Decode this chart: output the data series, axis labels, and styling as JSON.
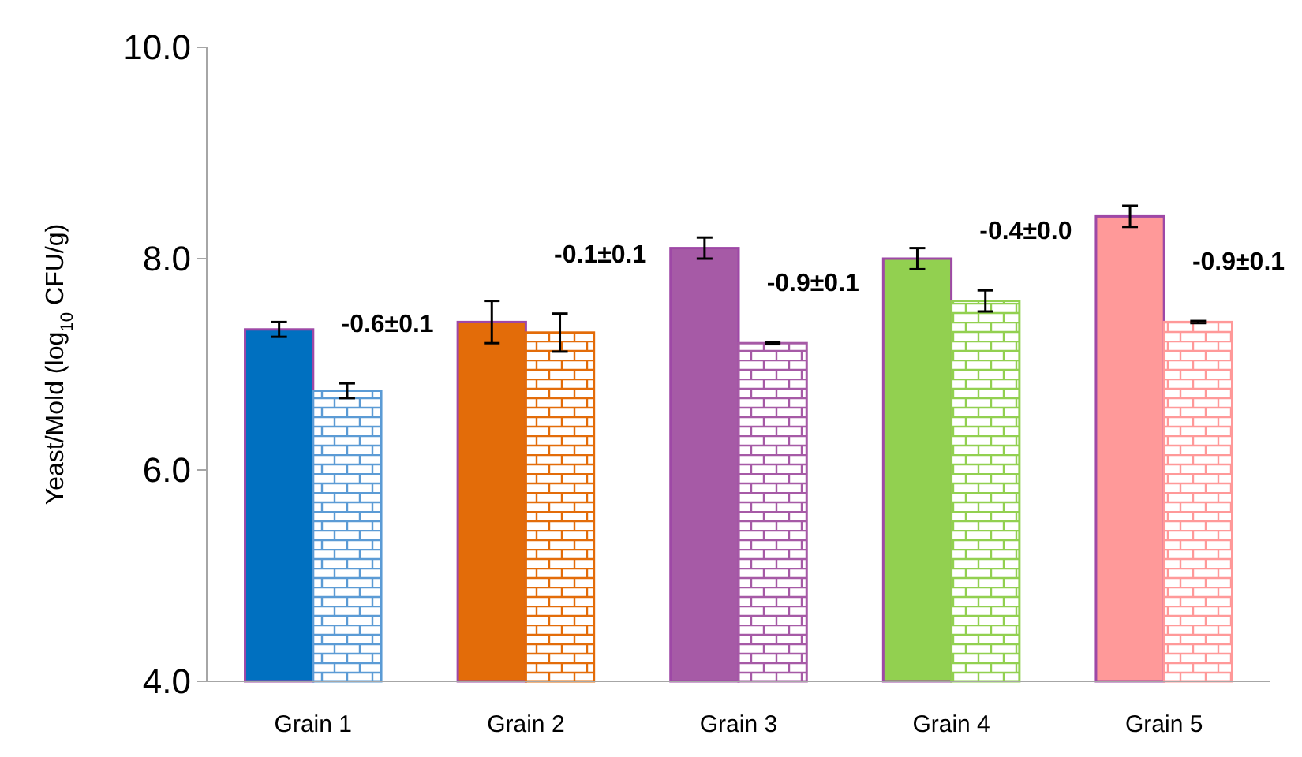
{
  "chart_data": {
    "type": "bar",
    "ylabel": "Yeast/Mold (log$_{10}$ CFU/g)",
    "categories": [
      "Grain 1",
      "Grain 2",
      "Grain 3",
      "Grain 4",
      "Grain 5"
    ],
    "series": [
      {
        "colors": [
          "#0070c0",
          "#e36c09",
          "#a65aa6",
          "#92d050",
          "#ff9999"
        ],
        "values": [
          7.33,
          7.4,
          8.1,
          8.0,
          8.4
        ],
        "errors": [
          0.07,
          0.2,
          0.1,
          0.1,
          0.1
        ]
      },
      {
        "colors": [
          "#5b9bd5",
          "#e36c09",
          "#a65aa6",
          "#92d050",
          "#ff9999"
        ],
        "values": [
          6.75,
          7.3,
          7.2,
          7.6,
          7.4
        ],
        "errors": [
          0.07,
          0.18,
          0.01,
          0.1,
          0.01
        ]
      }
    ],
    "ylim": [
      4,
      10
    ],
    "yticks": [
      {
        "value": 4,
        "label": "4.0"
      },
      {
        "value": 6,
        "label": "6.0"
      },
      {
        "value": 8,
        "label": "8.0"
      },
      {
        "value": 10,
        "label": "10.0"
      }
    ],
    "grid": false,
    "annotations": [
      "-0.6±0.1",
      "-0.1±0.1",
      "-0.9±0.1",
      "-0.4±0.0",
      "-0.9±0.1"
    ]
  }
}
